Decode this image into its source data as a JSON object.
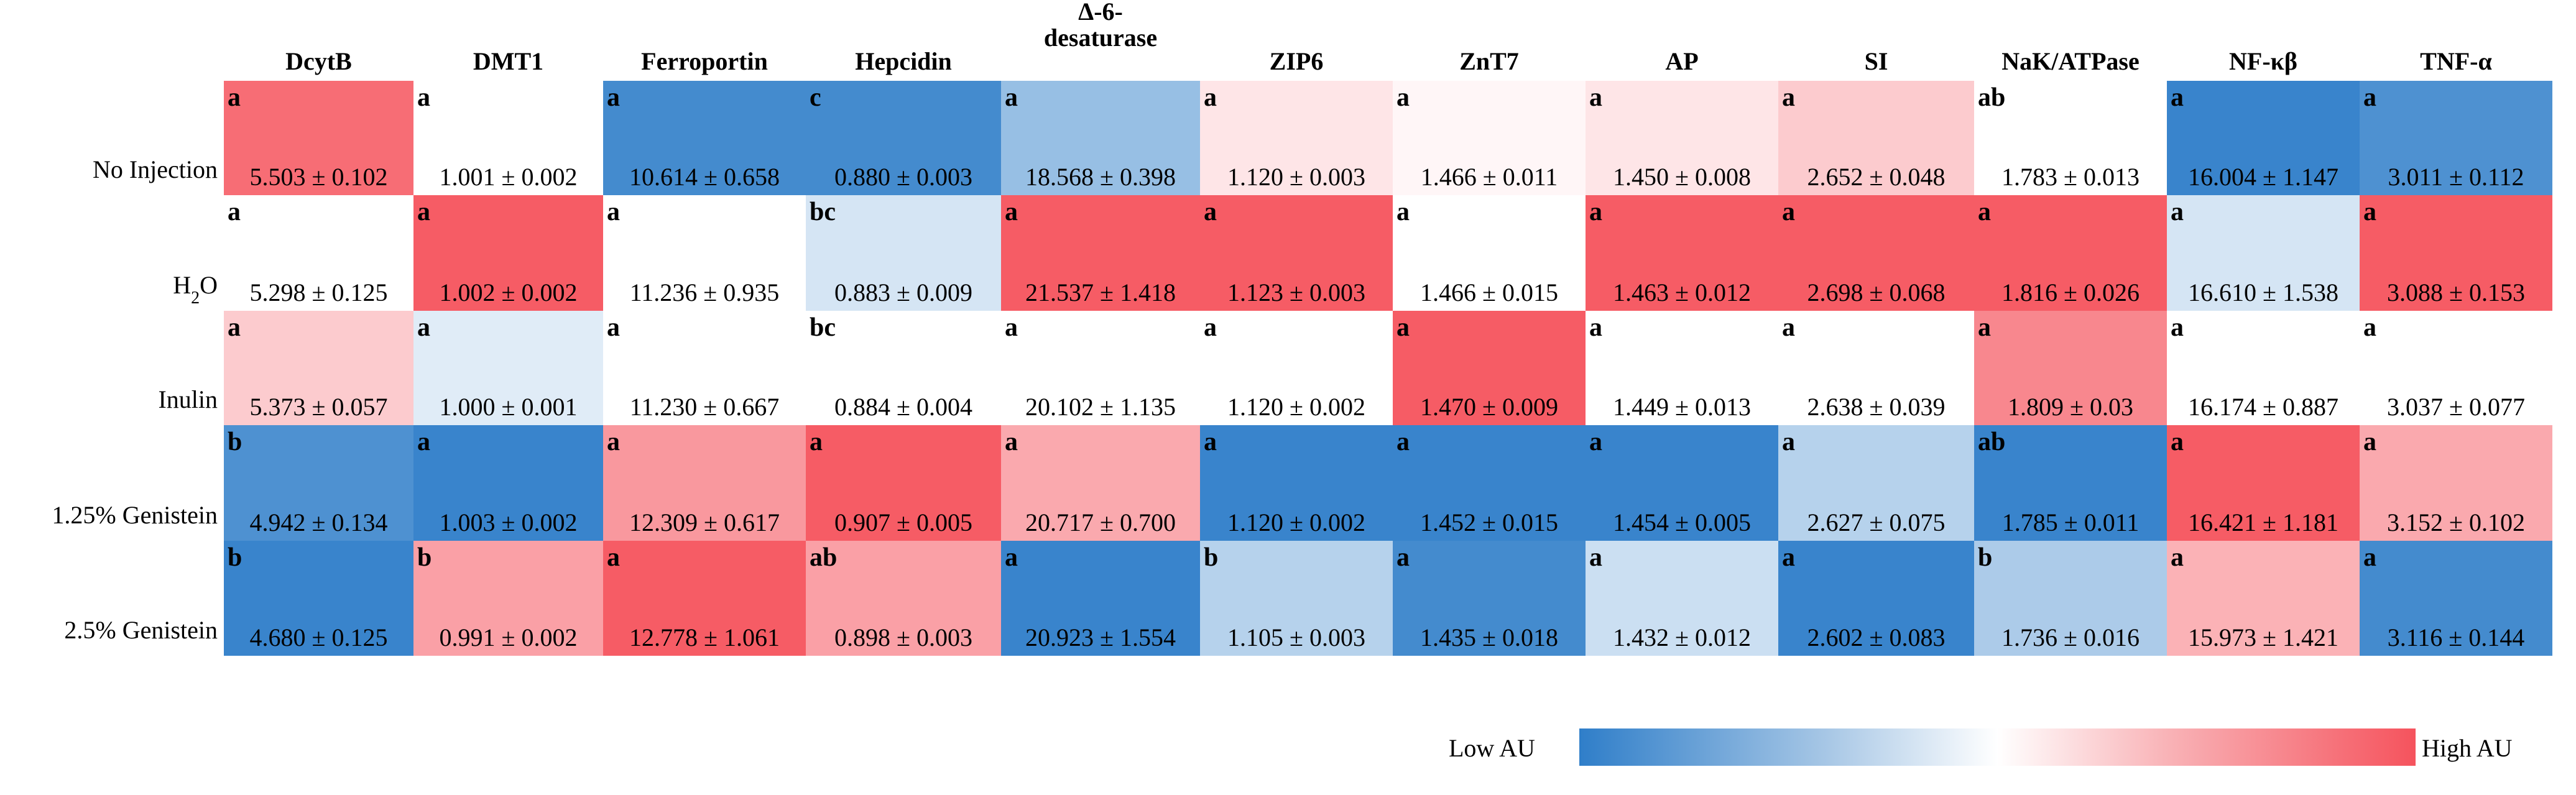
{
  "chart_data": {
    "type": "heatmap",
    "columns": [
      "DcytB",
      "DMT1",
      "Ferroportin",
      "Hepcidin",
      "Δ-6-desaturase",
      "ZIP6",
      "ZnT7",
      "AP",
      "SI",
      "NaK/ATPase",
      "NF-κβ",
      "TNF-α"
    ],
    "rows": [
      "No Injection",
      "H2O",
      "Inulin",
      "1.25% Genistein",
      "2.5% Genistein"
    ],
    "cells": [
      [
        {
          "letter": "a",
          "value": "5.503 ± 0.102",
          "intensity": 0.85
        },
        {
          "letter": "a",
          "value": "1.001 ± 0.002",
          "intensity": 0.0
        },
        {
          "letter": "a",
          "value": "10.614 ± 0.658",
          "intensity": -0.9
        },
        {
          "letter": "c",
          "value": "0.880 ± 0.003",
          "intensity": -0.9
        },
        {
          "letter": "a",
          "value": "18.568 ± 0.398",
          "intensity": -0.5
        },
        {
          "letter": "a",
          "value": "1.120 ± 0.003",
          "intensity": 0.15
        },
        {
          "letter": "a",
          "value": "1.466 ± 0.011",
          "intensity": 0.05
        },
        {
          "letter": "a",
          "value": "1.450 ± 0.008",
          "intensity": 0.15
        },
        {
          "letter": "a",
          "value": "2.652 ± 0.048",
          "intensity": 0.3
        },
        {
          "letter": "ab",
          "value": "1.783 ± 0.013",
          "intensity": 0.0
        },
        {
          "letter": "a",
          "value": "16.004 ± 1.147",
          "intensity": -0.95
        },
        {
          "letter": "a",
          "value": "3.011 ± 0.112",
          "intensity": -0.85
        }
      ],
      [
        {
          "letter": "a",
          "value": "5.298 ± 0.125",
          "intensity": 0.0
        },
        {
          "letter": "a",
          "value": "1.002 ± 0.002",
          "intensity": 0.95
        },
        {
          "letter": "a",
          "value": "11.236 ± 0.935",
          "intensity": 0.0
        },
        {
          "letter": "bc",
          "value": "0.883 ± 0.009",
          "intensity": -0.2
        },
        {
          "letter": "a",
          "value": "21.537 ± 1.418",
          "intensity": 0.95
        },
        {
          "letter": "a",
          "value": "1.123 ± 0.003",
          "intensity": 0.95
        },
        {
          "letter": "a",
          "value": "1.466 ± 0.015",
          "intensity": 0.0
        },
        {
          "letter": "a",
          "value": "1.463 ± 0.012",
          "intensity": 0.95
        },
        {
          "letter": "a",
          "value": "2.698 ± 0.068",
          "intensity": 0.95
        },
        {
          "letter": "a",
          "value": "1.816 ± 0.026",
          "intensity": 0.95
        },
        {
          "letter": "a",
          "value": "16.610 ± 1.538",
          "intensity": -0.2
        },
        {
          "letter": "a",
          "value": "3.088 ± 0.153",
          "intensity": 0.95
        }
      ],
      [
        {
          "letter": "a",
          "value": "5.373 ± 0.057",
          "intensity": 0.3
        },
        {
          "letter": "a",
          "value": "1.000 ± 0.001",
          "intensity": -0.15
        },
        {
          "letter": "a",
          "value": "11.230 ± 0.667",
          "intensity": 0.0
        },
        {
          "letter": "bc",
          "value": "0.884 ± 0.004",
          "intensity": 0.0
        },
        {
          "letter": "a",
          "value": "20.102 ± 1.135",
          "intensity": 0.0
        },
        {
          "letter": "a",
          "value": "1.120 ± 0.002",
          "intensity": 0.0
        },
        {
          "letter": "a",
          "value": "1.470 ± 0.009",
          "intensity": 0.95
        },
        {
          "letter": "a",
          "value": "1.449 ± 0.013",
          "intensity": 0.0
        },
        {
          "letter": "a",
          "value": "2.638 ± 0.039",
          "intensity": 0.0
        },
        {
          "letter": "a",
          "value": "1.809 ± 0.03",
          "intensity": 0.7
        },
        {
          "letter": "a",
          "value": "16.174 ± 0.887",
          "intensity": 0.0
        },
        {
          "letter": "a",
          "value": "3.037 ± 0.077",
          "intensity": 0.0
        }
      ],
      [
        {
          "letter": "b",
          "value": "4.942 ± 0.134",
          "intensity": -0.85
        },
        {
          "letter": "a",
          "value": "1.003 ± 0.002",
          "intensity": -0.95
        },
        {
          "letter": "a",
          "value": "12.309 ± 0.617",
          "intensity": 0.6
        },
        {
          "letter": "a",
          "value": "0.907 ± 0.005",
          "intensity": 0.95
        },
        {
          "letter": "a",
          "value": "20.717 ± 0.700",
          "intensity": 0.5
        },
        {
          "letter": "a",
          "value": "1.120 ± 0.002",
          "intensity": -0.95
        },
        {
          "letter": "a",
          "value": "1.452 ± 0.015",
          "intensity": -0.95
        },
        {
          "letter": "a",
          "value": "1.454 ± 0.005",
          "intensity": -0.95
        },
        {
          "letter": "a",
          "value": "2.627 ± 0.075",
          "intensity": -0.35
        },
        {
          "letter": "ab",
          "value": "1.785 ± 0.011",
          "intensity": -0.95
        },
        {
          "letter": "a",
          "value": "16.421 ± 1.181",
          "intensity": 0.95
        },
        {
          "letter": "a",
          "value": "3.152 ± 0.102",
          "intensity": 0.5
        }
      ],
      [
        {
          "letter": "b",
          "value": "4.680 ± 0.125",
          "intensity": -0.95
        },
        {
          "letter": "b",
          "value": "0.991 ± 0.002",
          "intensity": 0.55
        },
        {
          "letter": "a",
          "value": "12.778 ± 1.061",
          "intensity": 0.95
        },
        {
          "letter": "ab",
          "value": "0.898 ± 0.003",
          "intensity": 0.55
        },
        {
          "letter": "a",
          "value": "20.923 ± 1.554",
          "intensity": -0.95
        },
        {
          "letter": "b",
          "value": "1.105 ± 0.003",
          "intensity": -0.35
        },
        {
          "letter": "a",
          "value": "1.435 ± 0.018",
          "intensity": -0.9
        },
        {
          "letter": "a",
          "value": "1.432 ± 0.012",
          "intensity": -0.25
        },
        {
          "letter": "a",
          "value": "2.602 ± 0.083",
          "intensity": -0.95
        },
        {
          "letter": "b",
          "value": "1.736 ± 0.016",
          "intensity": -0.4
        },
        {
          "letter": "a",
          "value": "15.973 ± 1.421",
          "intensity": 0.45
        },
        {
          "letter": "a",
          "value": "3.116 ± 0.144",
          "intensity": -0.9
        }
      ]
    ],
    "legend": {
      "low_label": "Low AU",
      "high_label": "High AU",
      "low_color": "#2f7ec9",
      "mid_color": "#ffffff",
      "high_color": "#f5535d"
    }
  }
}
